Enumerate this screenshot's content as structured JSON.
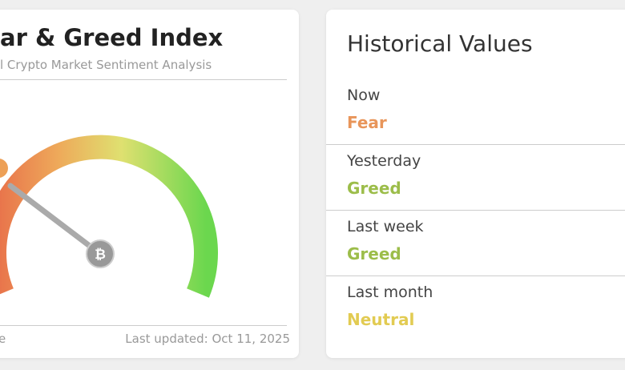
{
  "left_card": {
    "title": "ar & Greed Index",
    "subtitle": "l Crypto Market Sentiment Analysis",
    "footer_left": "e",
    "footer_right": "Last updated: Oct 11, 2025"
  },
  "right_card": {
    "title": "Historical Values",
    "rows": [
      {
        "label": "Now",
        "value": "Fear"
      },
      {
        "label": "Yesterday",
        "value": "Greed"
      },
      {
        "label": "Last week",
        "value": "Greed"
      },
      {
        "label": "Last month",
        "value": "Neutral"
      }
    ]
  }
}
